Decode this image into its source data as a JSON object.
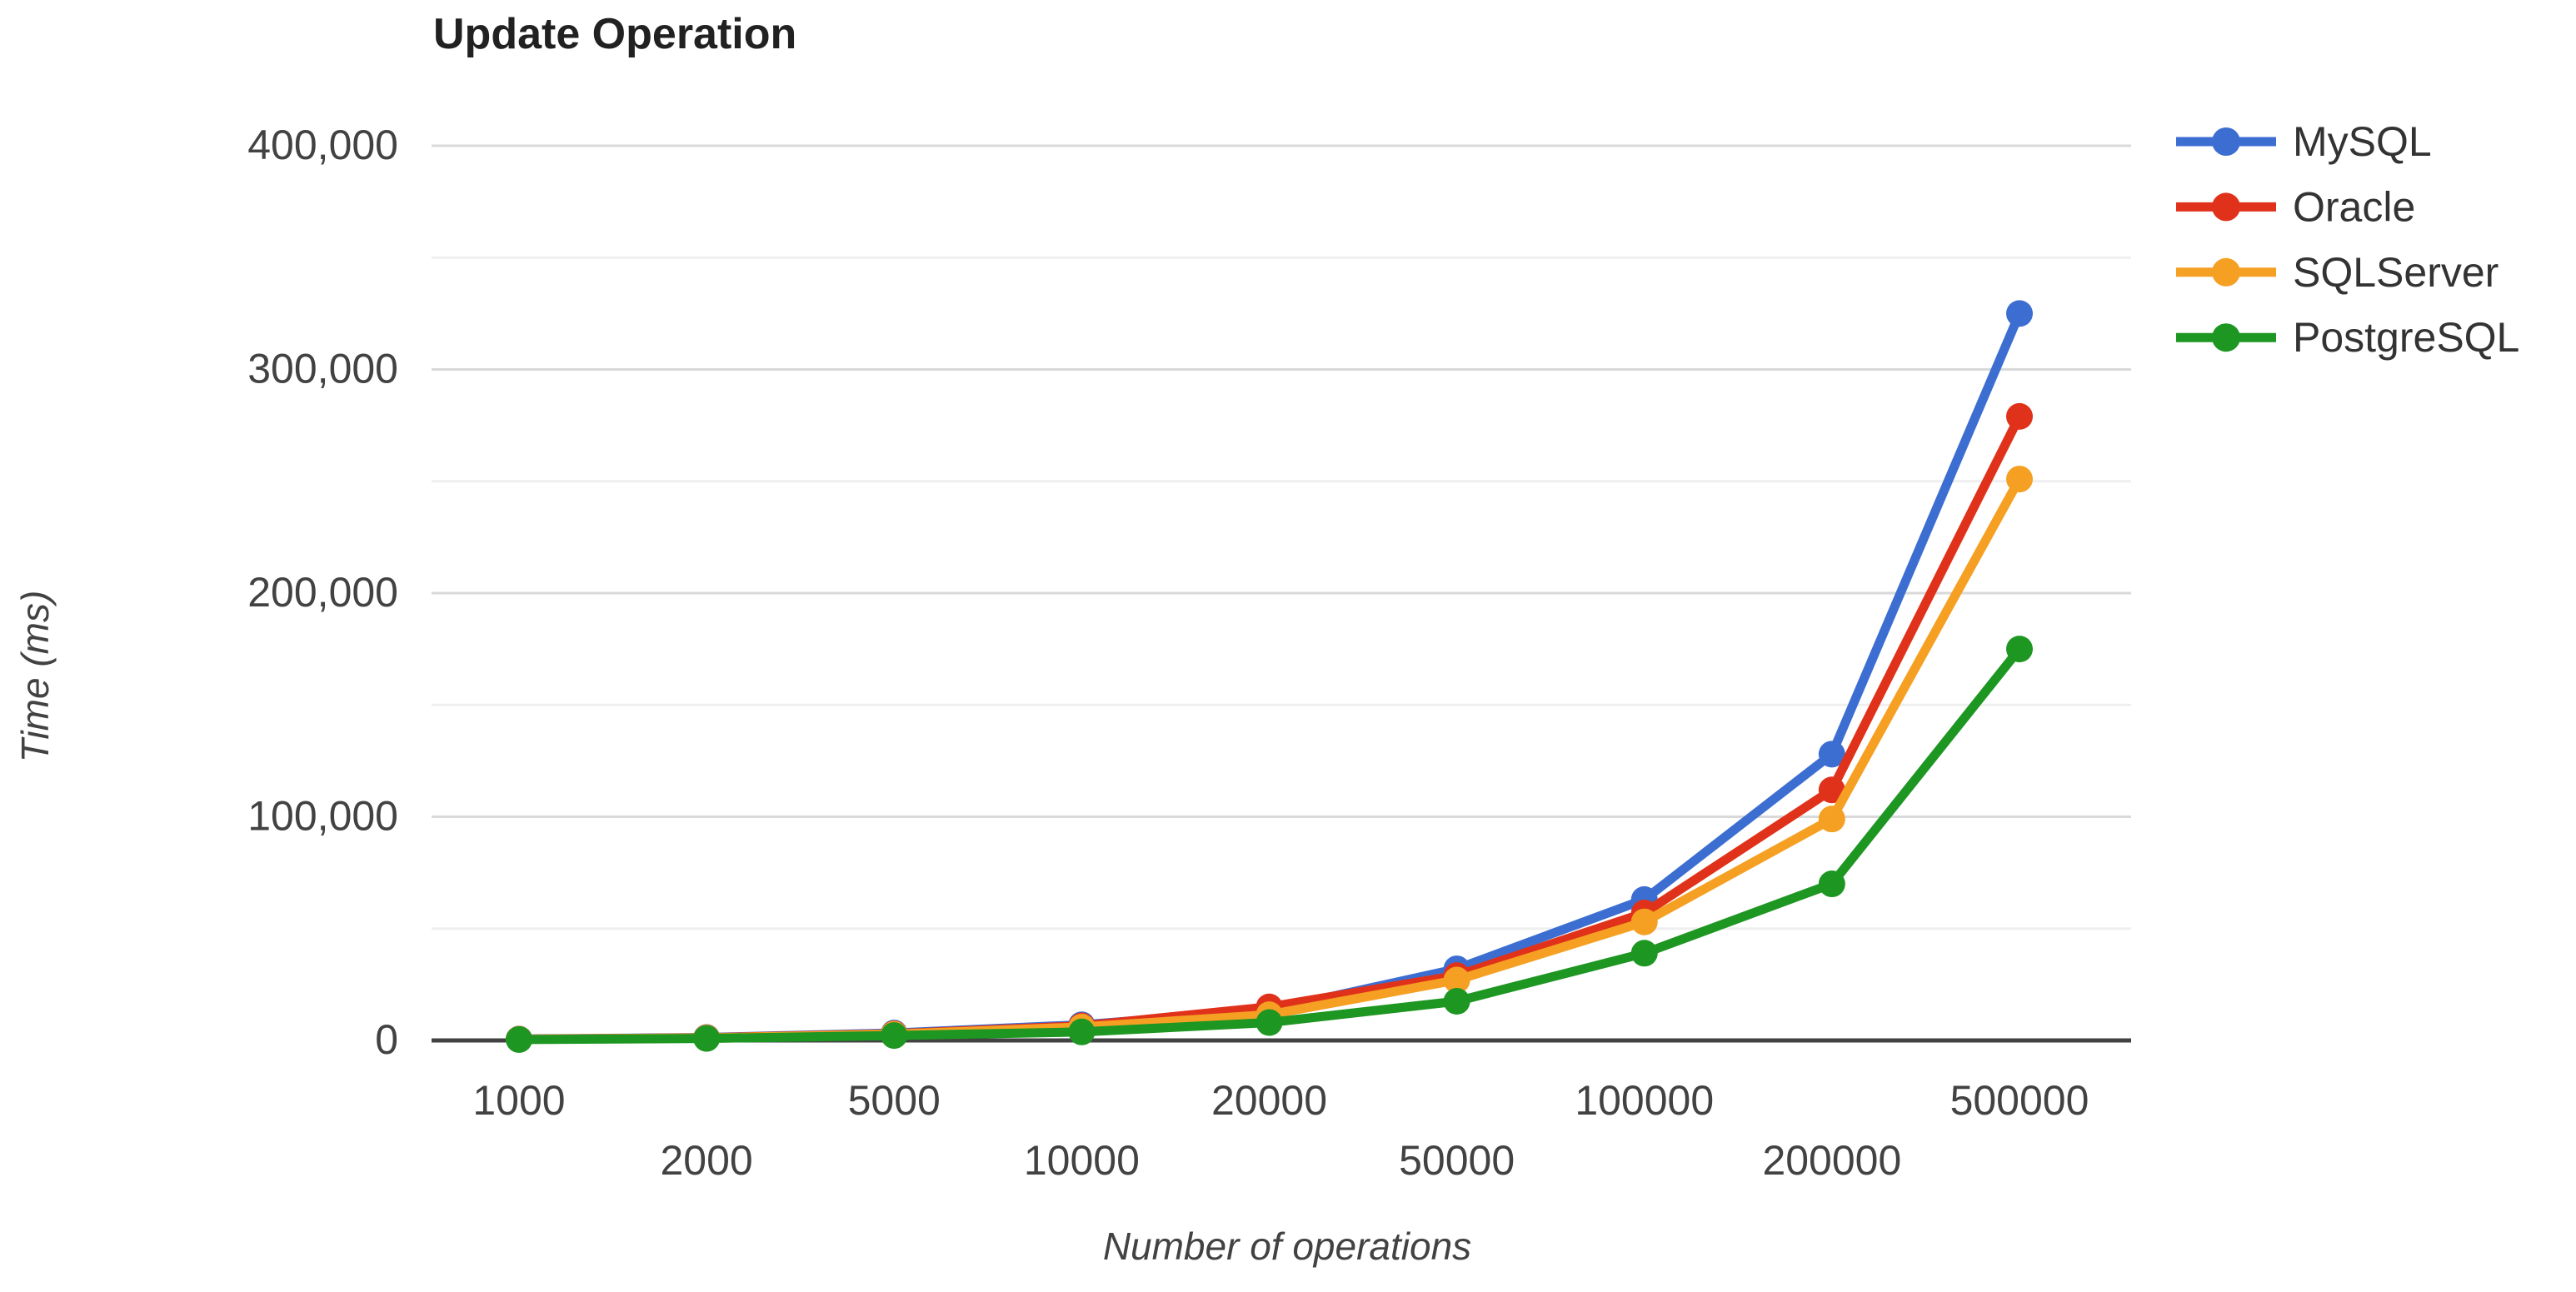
{
  "title": "Update Operation",
  "axis": {
    "y_title": "Time (ms)",
    "x_title": "Number of operations"
  },
  "colors": {
    "mysql": "#3C6ED2",
    "oracle": "#E0321A",
    "sqlserver": "#F5A023",
    "postgresql": "#1E9622",
    "axis_line": "#424242",
    "major_grid": "#d9d9d9",
    "minor_grid": "#efefef",
    "tick_text": "#424242",
    "title_text": "#212121",
    "legend_text": "#333333"
  },
  "chart_data": {
    "type": "line",
    "title": "Update Operation",
    "xlabel": "Number of operations",
    "ylabel": "Time (ms)",
    "categories": [
      "1000",
      "2000",
      "5000",
      "10000",
      "20000",
      "50000",
      "100000",
      "200000",
      "500000"
    ],
    "series": [
      {
        "name": "MySQL",
        "color": "#3C6ED2",
        "values": [
          600,
          1300,
          3300,
          7000,
          13500,
          32000,
          63000,
          128000,
          325000
        ]
      },
      {
        "name": "Oracle",
        "color": "#E0321A",
        "values": [
          550,
          1200,
          3000,
          6500,
          15000,
          29000,
          57000,
          112000,
          279000
        ]
      },
      {
        "name": "SQLServer",
        "color": "#F5A023",
        "values": [
          500,
          1100,
          2800,
          6000,
          11500,
          27000,
          53000,
          99000,
          251000
        ]
      },
      {
        "name": "PostgreSQL",
        "color": "#1E9622",
        "values": [
          400,
          900,
          2200,
          3800,
          8000,
          17500,
          39000,
          70000,
          175000
        ]
      }
    ],
    "ylim": [
      0,
      400000
    ],
    "y_major_tick_values": [
      0,
      100000,
      200000,
      300000,
      400000
    ],
    "y_major_tick_labels": [
      "0",
      "100,000",
      "200,000",
      "300,000",
      "400,000"
    ],
    "y_minor_tick_values": [
      50000,
      150000,
      250000,
      350000
    ],
    "grid": "horizontal major every 100,000 with minor lines every 50,000",
    "x_label_layout": "staggered-two-rows",
    "legend_position": "right",
    "legend_entries": [
      "MySQL",
      "Oracle",
      "SQLServer",
      "PostgreSQL"
    ]
  }
}
